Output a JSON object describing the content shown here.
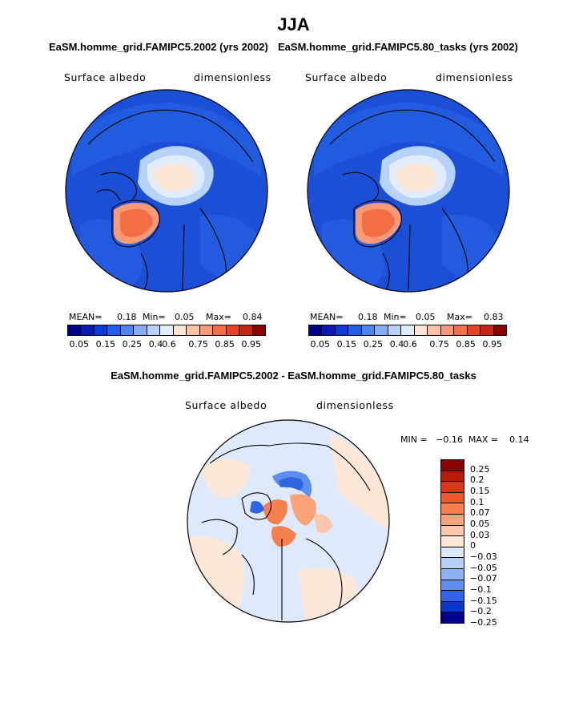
{
  "title": "JJA",
  "panels": [
    {
      "title": "EaSM.homme_grid.FAMIPC5.2002 (yrs 2002)",
      "variable": "Surface albedo",
      "units": "dimensionless",
      "stats": {
        "mean_label": "MEAN=",
        "mean": "0.18",
        "min_label": "Min=",
        "min": "0.05",
        "max_label": "Max=",
        "max": "0.84"
      },
      "colorbar_ticks": [
        "0.05",
        "0.15",
        "0.25",
        "0.4",
        "0.6",
        "0.75",
        "0.85",
        "0.95"
      ]
    },
    {
      "title": "EaSM.homme_grid.FAMIPC5.80_tasks (yrs 2002)",
      "variable": "Surface albedo",
      "units": "dimensionless",
      "stats": {
        "mean_label": "MEAN=",
        "mean": "0.18",
        "min_label": "Min=",
        "min": "0.05",
        "max_label": "Max=",
        "max": "0.83"
      },
      "colorbar_ticks": [
        "0.05",
        "0.15",
        "0.25",
        "0.4",
        "0.6",
        "0.75",
        "0.85",
        "0.95"
      ]
    }
  ],
  "diff": {
    "title": "EaSM.homme_grid.FAMIPC5.2002 - EaSM.homme_grid.FAMIPC5.80_tasks",
    "variable": "Surface albedo",
    "units": "dimensionless",
    "minmax_label": "MIN =   −0.16  MAX =    0.14",
    "colorbar_ticks": [
      "0.25",
      "0.2",
      "0.15",
      "0.1",
      "0.07",
      "0.05",
      "0.03",
      "0",
      "−0.03",
      "−0.05",
      "−0.07",
      "−0.1",
      "−0.15",
      "−0.2",
      "−0.25"
    ]
  },
  "colors": {
    "abs_scale": [
      "#00008b",
      "#0a1ab0",
      "#0c3ad4",
      "#1f5ee8",
      "#4a86f0",
      "#84adf5",
      "#b8d3fa",
      "#e1edfc",
      "#fde5d3",
      "#fbc3a4",
      "#f89a75",
      "#f46e45",
      "#e94422",
      "#c52410",
      "#8b0000"
    ],
    "diff_scale_top_down": [
      "#8b0000",
      "#b81a05",
      "#dd3414",
      "#f2562a",
      "#f7804f",
      "#faa37b",
      "#fcc7aa",
      "#fde7d8",
      "#dce9fb",
      "#b7d0f8",
      "#8cb2f3",
      "#5e8fec",
      "#2f64e2",
      "#0a38c8",
      "#00008b"
    ],
    "ocean_base": "#1a4fd6",
    "ice_pale": "#e4effc",
    "greenland_red": "#f06a42",
    "diff_background": "#deeafb"
  }
}
